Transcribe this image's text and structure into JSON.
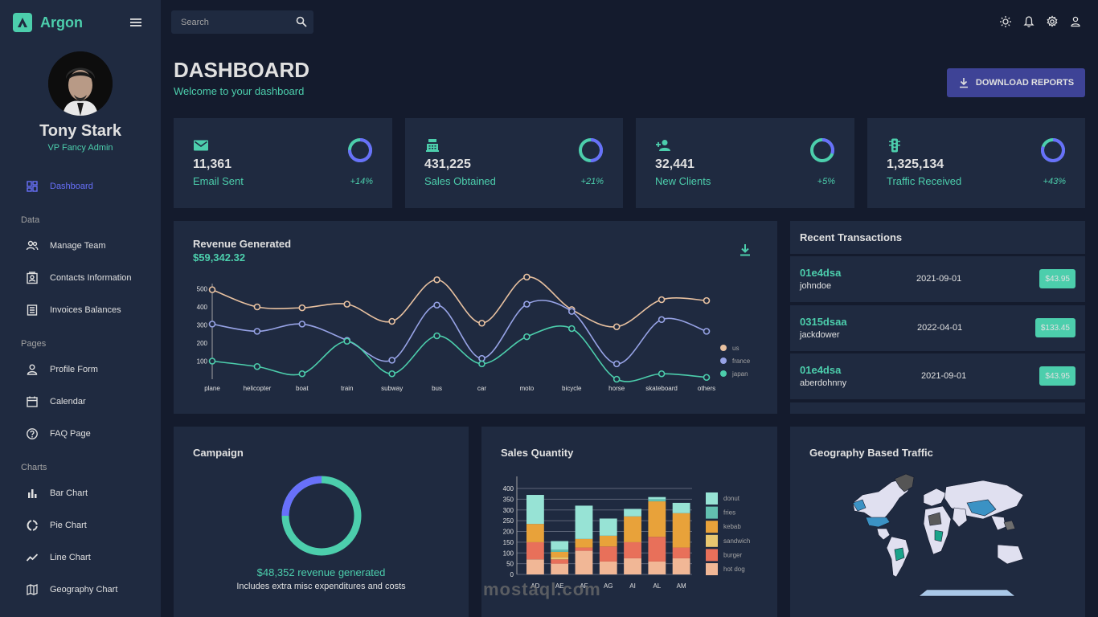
{
  "brand": {
    "name": "Argon"
  },
  "profile": {
    "name": "Tony Stark",
    "role": "VP Fancy Admin"
  },
  "sidebar": {
    "dashboard": "Dashboard",
    "sections": [
      "Data",
      "Pages",
      "Charts"
    ],
    "items": [
      {
        "label": "Manage Team",
        "icon": "team-icon"
      },
      {
        "label": "Contacts Information",
        "icon": "contacts-icon"
      },
      {
        "label": "Invoices Balances",
        "icon": "invoices-icon"
      },
      {
        "label": "Profile Form",
        "icon": "person-icon"
      },
      {
        "label": "Calendar",
        "icon": "calendar-icon"
      },
      {
        "label": "FAQ Page",
        "icon": "help-icon"
      },
      {
        "label": "Bar Chart",
        "icon": "bar-chart-icon"
      },
      {
        "label": "Pie Chart",
        "icon": "pie-chart-icon"
      },
      {
        "label": "Line Chart",
        "icon": "line-chart-icon"
      },
      {
        "label": "Geography Chart",
        "icon": "map-icon"
      }
    ]
  },
  "search": {
    "placeholder": "Search"
  },
  "header": {
    "title": "DASHBOARD",
    "subtitle": "Welcome to your dashboard",
    "download": "DOWNLOAD REPORTS"
  },
  "stats": [
    {
      "value": "11,361",
      "label": "Email Sent",
      "increase": "+14%",
      "progress": 0.75,
      "icon": "email-icon"
    },
    {
      "value": "431,225",
      "label": "Sales Obtained",
      "increase": "+21%",
      "progress": 0.5,
      "icon": "point-of-sale-icon"
    },
    {
      "value": "32,441",
      "label": "New Clients",
      "increase": "+5%",
      "progress": 0.3,
      "icon": "person-add-icon"
    },
    {
      "value": "1,325,134",
      "label": "Traffic Received",
      "increase": "+43%",
      "progress": 0.8,
      "icon": "traffic-icon"
    }
  ],
  "revenue": {
    "title": "Revenue Generated",
    "amount": "$59,342.32"
  },
  "transactions": {
    "title": "Recent Transactions",
    "rows": [
      {
        "id": "01e4dsa",
        "user": "johndoe",
        "date": "2021-09-01",
        "cost": "$43.95"
      },
      {
        "id": "0315dsaa",
        "user": "jackdower",
        "date": "2022-04-01",
        "cost": "$133.45"
      },
      {
        "id": "01e4dsa",
        "user": "aberdohnny",
        "date": "2021-09-01",
        "cost": "$43.95"
      }
    ]
  },
  "campaign": {
    "title": "Campaign",
    "revenue": "$48,352 revenue generated",
    "note": "Includes extra misc expenditures and costs",
    "progress": 0.75
  },
  "sales": {
    "title": "Sales Quantity"
  },
  "geo": {
    "title": "Geography Based Traffic"
  },
  "watermark": {
    "text": "mostaql.com"
  },
  "colors": {
    "accent": "#4cceac",
    "primary": "#6870fa",
    "panel": "#1f2a40",
    "bg": "#141b2d",
    "button": "#3e4396"
  },
  "chart_data": [
    {
      "type": "line",
      "categories": [
        "plane",
        "helicopter",
        "boat",
        "train",
        "subway",
        "bus",
        "car",
        "moto",
        "bicycle",
        "horse",
        "skateboard",
        "others"
      ],
      "ylim": [
        0,
        600
      ],
      "yticks": [
        100,
        200,
        300,
        400,
        500
      ],
      "series": [
        {
          "name": "us",
          "color": "#e8c1a0",
          "values": [
            495,
            400,
            395,
            415,
            320,
            550,
            310,
            565,
            385,
            290,
            440,
            435
          ]
        },
        {
          "name": "france",
          "color": "#97a3e6",
          "values": [
            305,
            265,
            305,
            215,
            105,
            410,
            115,
            415,
            375,
            85,
            330,
            265
          ]
        },
        {
          "name": "japan",
          "color": "#4cceac",
          "values": [
            100,
            70,
            30,
            210,
            30,
            240,
            85,
            235,
            280,
            0,
            30,
            10
          ]
        }
      ]
    },
    {
      "type": "bar",
      "stacked": true,
      "categories": [
        "AD",
        "AE",
        "AF",
        "AG",
        "AI",
        "AL",
        "AM"
      ],
      "ylim": [
        0,
        400
      ],
      "yticks": [
        0,
        50,
        100,
        150,
        200,
        250,
        300,
        350,
        400
      ],
      "series": [
        {
          "name": "hot dog",
          "color": "#f1b796",
          "values": [
            70,
            50,
            110,
            60,
            75,
            60,
            75
          ]
        },
        {
          "name": "burger",
          "color": "#e8705a",
          "values": [
            80,
            20,
            15,
            70,
            75,
            115,
            50
          ]
        },
        {
          "name": "sandwich",
          "color": "#e8c770",
          "values": [
            0,
            10,
            0,
            0,
            0,
            0,
            0
          ]
        },
        {
          "name": "kebab",
          "color": "#e8a23a",
          "values": [
            85,
            25,
            40,
            50,
            120,
            165,
            160
          ]
        },
        {
          "name": "fries",
          "color": "#62c0b0",
          "values": [
            0,
            10,
            0,
            0,
            0,
            10,
            0
          ]
        },
        {
          "name": "donut",
          "color": "#97e3d5",
          "values": [
            135,
            40,
            155,
            80,
            35,
            10,
            48
          ]
        }
      ]
    }
  ]
}
